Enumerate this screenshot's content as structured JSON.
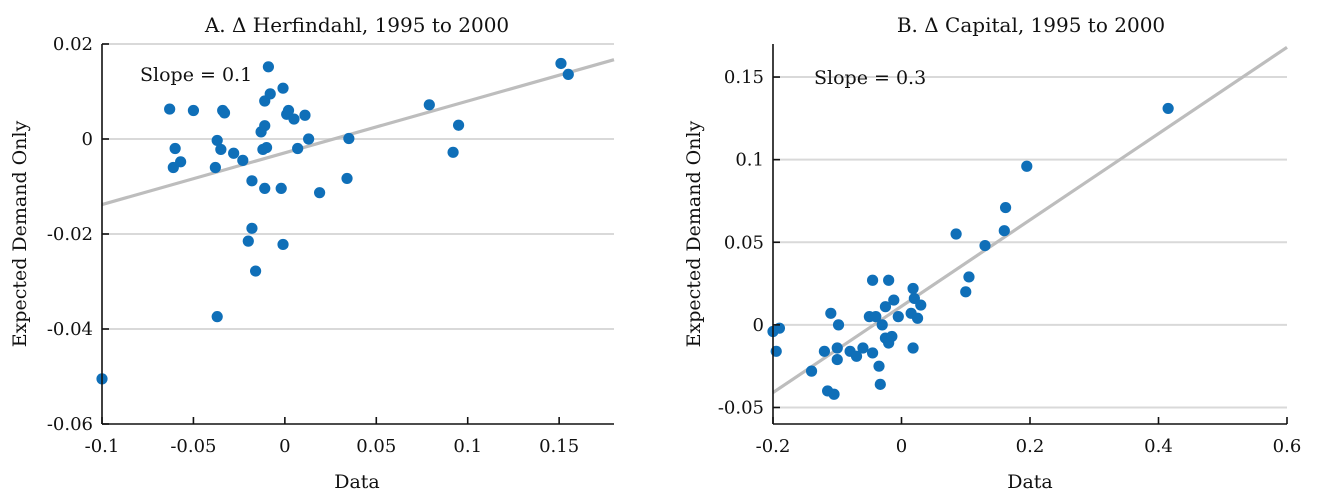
{
  "colors": {
    "marker": "#0f6fb8",
    "fit_line": "#bdbdbd",
    "grid": "#d9d9d9",
    "axis": "#111111"
  },
  "chart_data": [
    {
      "type": "scatter",
      "title": "A. Δ Herfindahl, 1995 to 2000",
      "xlabel": "Data",
      "ylabel": "Expected Demand Only",
      "annotation": "Slope = 0.1",
      "xlim": [
        -0.1,
        0.18
      ],
      "ylim": [
        -0.06,
        0.02
      ],
      "xticks": [
        -0.1,
        -0.05,
        0,
        0.05,
        0.1,
        0.15
      ],
      "xtick_labels": [
        "-0.1",
        "-0.05",
        "0",
        "0.05",
        "0.1",
        "0.15"
      ],
      "yticks": [
        -0.06,
        -0.04,
        -0.02,
        0,
        0.02
      ],
      "ytick_labels": [
        "-0.06",
        "-0.04",
        "-0.02",
        "0",
        "0.02"
      ],
      "grid": "horizontal",
      "fit_line": {
        "x": [
          -0.1,
          0.18
        ],
        "y": [
          -0.0138,
          0.0167
        ]
      },
      "points": [
        {
          "x": -0.063,
          "y": 0.0063
        },
        {
          "x": -0.05,
          "y": 0.006
        },
        {
          "x": -0.034,
          "y": 0.006
        },
        {
          "x": -0.033,
          "y": 0.0055
        },
        {
          "x": -0.06,
          "y": -0.002
        },
        {
          "x": -0.057,
          "y": -0.0048
        },
        {
          "x": -0.061,
          "y": -0.006
        },
        {
          "x": -0.038,
          "y": -0.006
        },
        {
          "x": -0.037,
          "y": -0.0003
        },
        {
          "x": -0.035,
          "y": -0.0022
        },
        {
          "x": -0.028,
          "y": -0.003
        },
        {
          "x": -0.023,
          "y": -0.0045
        },
        {
          "x": -0.018,
          "y": -0.0088
        },
        {
          "x": -0.012,
          "y": -0.0022
        },
        {
          "x": -0.01,
          "y": -0.0018
        },
        {
          "x": -0.011,
          "y": -0.0104
        },
        {
          "x": -0.002,
          "y": -0.0104
        },
        {
          "x": -0.013,
          "y": 0.0015
        },
        {
          "x": -0.011,
          "y": 0.0028
        },
        {
          "x": -0.011,
          "y": 0.008
        },
        {
          "x": -0.008,
          "y": 0.0095
        },
        {
          "x": -0.009,
          "y": 0.0152
        },
        {
          "x": -0.001,
          "y": 0.0107
        },
        {
          "x": 0.001,
          "y": 0.0052
        },
        {
          "x": 0.002,
          "y": 0.006
        },
        {
          "x": 0.005,
          "y": 0.0042
        },
        {
          "x": 0.007,
          "y": -0.002
        },
        {
          "x": 0.011,
          "y": 0.005
        },
        {
          "x": 0.013,
          "y": 0.0
        },
        {
          "x": 0.019,
          "y": -0.0113
        },
        {
          "x": 0.034,
          "y": -0.0083
        },
        {
          "x": 0.035,
          "y": 0.0001
        },
        {
          "x": -0.018,
          "y": -0.0188
        },
        {
          "x": -0.02,
          "y": -0.0215
        },
        {
          "x": -0.001,
          "y": -0.0222
        },
        {
          "x": -0.016,
          "y": -0.0278
        },
        {
          "x": -0.037,
          "y": -0.0374
        },
        {
          "x": -0.1,
          "y": -0.0505
        },
        {
          "x": 0.079,
          "y": 0.0072
        },
        {
          "x": 0.095,
          "y": 0.0029
        },
        {
          "x": 0.092,
          "y": -0.0028
        },
        {
          "x": 0.151,
          "y": 0.0159
        },
        {
          "x": 0.155,
          "y": 0.0136
        }
      ]
    },
    {
      "type": "scatter",
      "title": "B. Δ Capital, 1995 to 2000",
      "xlabel": "Data",
      "ylabel": "Expected Demand Only",
      "annotation": "Slope = 0.3",
      "xlim": [
        -0.2,
        0.6
      ],
      "ylim": [
        -0.06,
        0.17
      ],
      "xticks": [
        -0.2,
        0,
        0.2,
        0.4,
        0.6
      ],
      "xtick_labels": [
        "-0.2",
        "0",
        "0.2",
        "0.4",
        "0.6"
      ],
      "yticks": [
        -0.05,
        0,
        0.05,
        0.1,
        0.15
      ],
      "ytick_labels": [
        "-0.05",
        "0",
        "0.05",
        "0.1",
        "0.15"
      ],
      "grid": "horizontal",
      "fit_line": {
        "x": [
          -0.2,
          0.6
        ],
        "y": [
          -0.041,
          0.168
        ]
      },
      "points": [
        {
          "x": -0.2,
          "y": -0.004
        },
        {
          "x": -0.19,
          "y": -0.002
        },
        {
          "x": -0.195,
          "y": -0.016
        },
        {
          "x": -0.14,
          "y": -0.028
        },
        {
          "x": -0.12,
          "y": -0.016
        },
        {
          "x": -0.115,
          "y": -0.04
        },
        {
          "x": -0.105,
          "y": -0.042
        },
        {
          "x": -0.11,
          "y": 0.007
        },
        {
          "x": -0.1,
          "y": -0.014
        },
        {
          "x": -0.1,
          "y": -0.021
        },
        {
          "x": -0.098,
          "y": 0.0
        },
        {
          "x": -0.08,
          "y": -0.016
        },
        {
          "x": -0.07,
          "y": -0.019
        },
        {
          "x": -0.06,
          "y": -0.014
        },
        {
          "x": -0.05,
          "y": 0.005
        },
        {
          "x": -0.045,
          "y": -0.017
        },
        {
          "x": -0.04,
          "y": 0.005
        },
        {
          "x": -0.035,
          "y": -0.025
        },
        {
          "x": -0.03,
          "y": 0.0
        },
        {
          "x": -0.033,
          "y": -0.036
        },
        {
          "x": -0.025,
          "y": -0.008
        },
        {
          "x": -0.02,
          "y": -0.011
        },
        {
          "x": -0.015,
          "y": -0.007
        },
        {
          "x": -0.025,
          "y": 0.011
        },
        {
          "x": -0.012,
          "y": 0.015
        },
        {
          "x": -0.005,
          "y": 0.005
        },
        {
          "x": -0.045,
          "y": 0.027
        },
        {
          "x": -0.02,
          "y": 0.027
        },
        {
          "x": 0.015,
          "y": 0.007
        },
        {
          "x": 0.018,
          "y": 0.022
        },
        {
          "x": 0.02,
          "y": 0.016
        },
        {
          "x": 0.025,
          "y": 0.004
        },
        {
          "x": 0.03,
          "y": 0.012
        },
        {
          "x": 0.018,
          "y": -0.014
        },
        {
          "x": 0.085,
          "y": 0.055
        },
        {
          "x": 0.1,
          "y": 0.02
        },
        {
          "x": 0.105,
          "y": 0.029
        },
        {
          "x": 0.13,
          "y": 0.048
        },
        {
          "x": 0.16,
          "y": 0.057
        },
        {
          "x": 0.162,
          "y": 0.071
        },
        {
          "x": 0.195,
          "y": 0.096
        },
        {
          "x": 0.415,
          "y": 0.131
        }
      ]
    }
  ]
}
